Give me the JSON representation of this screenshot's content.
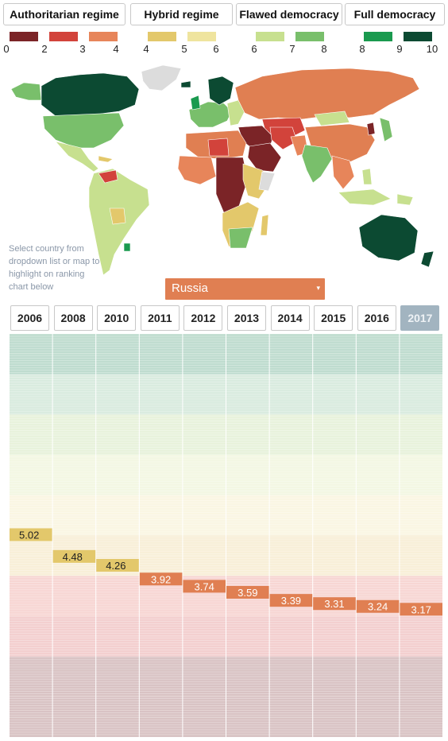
{
  "categories": [
    {
      "label": "Authoritarian regime"
    },
    {
      "label": "Hybrid regime"
    },
    {
      "label": "Flawed democracy"
    },
    {
      "label": "Full democracy"
    }
  ],
  "legend": {
    "swatches": [
      {
        "color": "#7b2427"
      },
      {
        "color": "#d2433b"
      },
      {
        "color": "#e7855a"
      },
      {
        "color": "#e3c86b"
      },
      {
        "color": "#efe49e"
      },
      {
        "color": "#c7e08f"
      },
      {
        "color": "#79bf6b"
      },
      {
        "color": "#1a9a4f"
      },
      {
        "color": "#0c4a32"
      }
    ],
    "numbers": [
      "0",
      "2",
      "3",
      "4",
      "4",
      "5",
      "6",
      "6",
      "7",
      "8",
      "8",
      "9",
      "10"
    ]
  },
  "map": {
    "note": "Select country from dropdown list or map to highlight on ranking chart below"
  },
  "dropdown": {
    "value": "Russia",
    "arrow": "▾"
  },
  "years": [
    "2006",
    "2008",
    "2010",
    "2011",
    "2012",
    "2013",
    "2014",
    "2015",
    "2016",
    "2017"
  ],
  "active_year": "2017",
  "chart_data": {
    "type": "bar",
    "title": "",
    "xlabel": "",
    "ylabel": "",
    "categories": [
      "2006",
      "2008",
      "2010",
      "2011",
      "2012",
      "2013",
      "2014",
      "2015",
      "2016",
      "2017"
    ],
    "series": [
      {
        "values": [
          5.02,
          4.48,
          4.26,
          3.92,
          3.74,
          3.59,
          3.39,
          3.31,
          3.24,
          3.17
        ]
      }
    ],
    "data_labels": [
      "5.02",
      "4.48",
      "4.26",
      "3.92",
      "3.74",
      "3.59",
      "3.39",
      "3.31",
      "3.24",
      "3.17"
    ],
    "ylim": [
      0,
      10
    ],
    "grid": true,
    "colors": {
      "hybrid": "#e3c86b",
      "authoritarian": "#e07f52"
    }
  }
}
